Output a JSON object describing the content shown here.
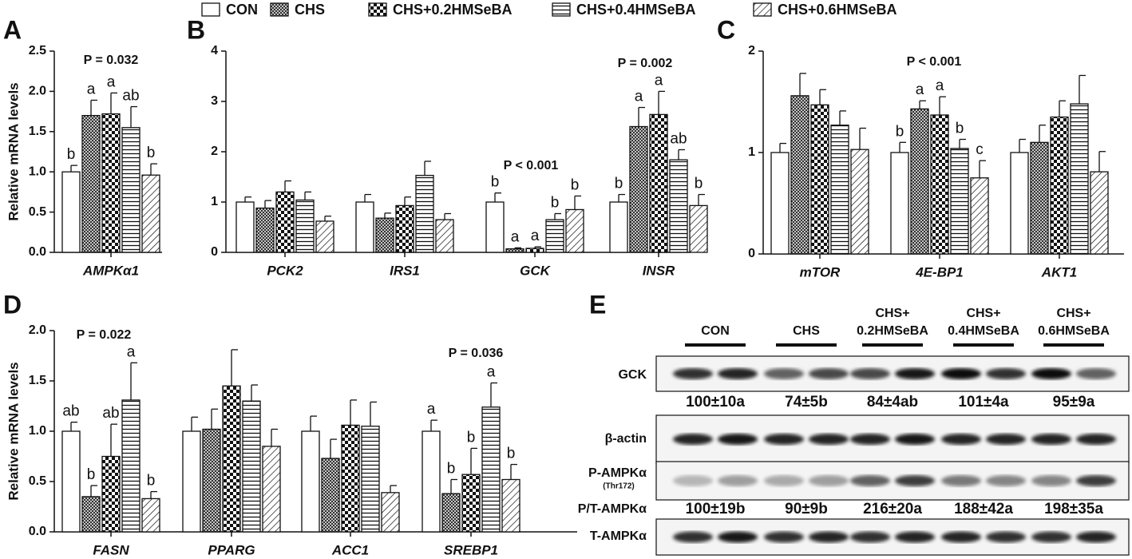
{
  "legend": [
    {
      "name": "CON",
      "pattern": "none"
    },
    {
      "name": "CHS",
      "pattern": "crosshatch"
    },
    {
      "name": "CHS+0.2HMSeBA",
      "pattern": "checker"
    },
    {
      "name": "CHS+0.4HMSeBA",
      "pattern": "horizontal"
    },
    {
      "name": "CHS+0.6HMSeBA",
      "pattern": "diagonal"
    }
  ],
  "chart_data": [
    {
      "type": "bar",
      "panel": "A",
      "ylabel": "Relative mRNA levels",
      "categories": [
        "AMPKα1"
      ],
      "ylim": [
        0,
        2.5
      ],
      "yticks": [
        {
          "value": 0,
          "label": "0.0"
        },
        0.5,
        {
          "value": 1,
          "label": "1.0"
        },
        1.5,
        {
          "value": 2,
          "label": "2.0"
        },
        2.5
      ],
      "annotations": [
        "P = 0.032"
      ],
      "series": [
        {
          "values": [
            1.0
          ],
          "errors": [
            0.08
          ],
          "letters": [
            "b"
          ]
        },
        {
          "values": [
            1.7
          ],
          "errors": [
            0.19
          ],
          "letters": [
            "a"
          ]
        },
        {
          "values": [
            1.72
          ],
          "errors": [
            0.26
          ],
          "letters": [
            "a"
          ]
        },
        {
          "values": [
            1.55
          ],
          "errors": [
            0.26
          ],
          "letters": [
            "ab"
          ]
        },
        {
          "values": [
            0.96
          ],
          "errors": [
            0.14
          ],
          "letters": [
            "b"
          ]
        }
      ]
    },
    {
      "type": "bar",
      "panel": "B",
      "categories": [
        "PCK2",
        "IRS1",
        "GCK",
        "INSR"
      ],
      "ylim": [
        0,
        4
      ],
      "yticks": [
        0,
        1,
        2,
        3,
        4
      ],
      "annotations": [
        "P <  0.001",
        "P = 0.002"
      ],
      "series": [
        {
          "values": [
            1.0,
            1.0,
            1.0,
            1.0
          ],
          "errors": [
            0.1,
            0.15,
            0.18,
            0.15
          ],
          "letters": [
            null,
            null,
            "b",
            "b"
          ]
        },
        {
          "values": [
            0.88,
            0.68,
            0.07,
            2.5
          ],
          "errors": [
            0.15,
            0.1,
            0.02,
            0.38
          ],
          "letters": [
            null,
            null,
            "a",
            "a"
          ]
        },
        {
          "values": [
            1.2,
            0.93,
            0.08,
            2.74
          ],
          "errors": [
            0.22,
            0.17,
            0.03,
            0.46
          ],
          "letters": [
            null,
            null,
            "a",
            "a"
          ]
        },
        {
          "values": [
            1.04,
            1.53,
            0.65,
            1.84
          ],
          "errors": [
            0.16,
            0.28,
            0.12,
            0.2
          ],
          "letters": [
            null,
            null,
            "b",
            "ab"
          ]
        },
        {
          "values": [
            0.62,
            0.65,
            0.85,
            0.93
          ],
          "errors": [
            0.1,
            0.12,
            0.27,
            0.22
          ],
          "letters": [
            null,
            null,
            "b",
            "b"
          ]
        }
      ]
    },
    {
      "type": "bar",
      "panel": "C",
      "categories": [
        "mTOR",
        "4E-BP1",
        "AKT1"
      ],
      "ylim": [
        0,
        2
      ],
      "yticks": [
        0,
        1,
        2
      ],
      "annotations": [
        "P <  0.001"
      ],
      "series": [
        {
          "values": [
            1.0,
            1.0,
            1.0
          ],
          "errors": [
            0.09,
            0.1,
            0.13
          ],
          "letters": [
            null,
            "b",
            null
          ]
        },
        {
          "values": [
            1.56,
            1.43,
            1.1
          ],
          "errors": [
            0.22,
            0.08,
            0.17
          ],
          "letters": [
            null,
            "a",
            null
          ]
        },
        {
          "values": [
            1.47,
            1.37,
            1.35
          ],
          "errors": [
            0.15,
            0.18,
            0.16
          ],
          "letters": [
            null,
            "a",
            null
          ]
        },
        {
          "values": [
            1.27,
            1.04,
            1.48
          ],
          "errors": [
            0.14,
            0.09,
            0.28
          ],
          "letters": [
            null,
            "b",
            null
          ]
        },
        {
          "values": [
            1.03,
            0.75,
            0.81
          ],
          "errors": [
            0.21,
            0.17,
            0.2
          ],
          "letters": [
            null,
            "c",
            null
          ]
        }
      ]
    },
    {
      "type": "bar",
      "panel": "D",
      "ylabel": "Relative mRNA levels",
      "categories": [
        "FASN",
        "PPARG",
        "ACC1",
        "SREBP1"
      ],
      "ylim": [
        0,
        2
      ],
      "yticks": [
        {
          "value": 0,
          "label": "0.0"
        },
        0.5,
        {
          "value": 1,
          "label": "1.0"
        },
        1.5,
        {
          "value": 2,
          "label": "2.0"
        }
      ],
      "annotations": [
        "P = 0.022",
        "P = 0.036"
      ],
      "series": [
        {
          "values": [
            1.0,
            1.0,
            1.0,
            1.0
          ],
          "errors": [
            0.09,
            0.14,
            0.15,
            0.11
          ],
          "letters": [
            "ab",
            null,
            null,
            "a"
          ]
        },
        {
          "values": [
            0.35,
            1.02,
            0.73,
            0.38
          ],
          "errors": [
            0.11,
            0.2,
            0.19,
            0.14
          ],
          "letters": [
            "b",
            null,
            null,
            "b"
          ]
        },
        {
          "values": [
            0.75,
            1.45,
            1.06,
            0.57
          ],
          "errors": [
            0.32,
            0.36,
            0.25,
            0.26
          ],
          "letters": [
            "ab",
            null,
            null,
            "b"
          ]
        },
        {
          "values": [
            1.31,
            1.3,
            1.05,
            1.24
          ],
          "errors": [
            0.37,
            0.16,
            0.24,
            0.24
          ],
          "letters": [
            "a",
            null,
            null,
            "a"
          ]
        },
        {
          "values": [
            0.33,
            0.85,
            0.39,
            0.52
          ],
          "errors": [
            0.07,
            0.17,
            0.07,
            0.15
          ],
          "letters": [
            "b",
            null,
            null,
            "b"
          ]
        }
      ]
    }
  ],
  "blot": {
    "panel": "E",
    "groups": [
      [
        "CON"
      ],
      [
        "CHS"
      ],
      [
        "CHS+",
        "0.2HMSeBA"
      ],
      [
        "CHS+",
        "0.4HMSeBA"
      ],
      [
        "CHS+",
        "0.6HMSeBA"
      ]
    ],
    "rows": [
      {
        "label": "GCK"
      },
      {
        "label": "β-actin"
      },
      {
        "label": "P-AMPKα",
        "sub": "(Thr172)"
      },
      {
        "label": "T-AMPKα"
      }
    ],
    "gck_quant": [
      "100±10a",
      "74±5b",
      "84±4ab",
      "101±4a",
      "95±9a"
    ],
    "ratio": {
      "label": "P/T-AMPKα",
      "values": [
        "100±19b",
        "90±9b",
        "216±20a",
        "188±42a",
        "198±35a"
      ]
    }
  }
}
